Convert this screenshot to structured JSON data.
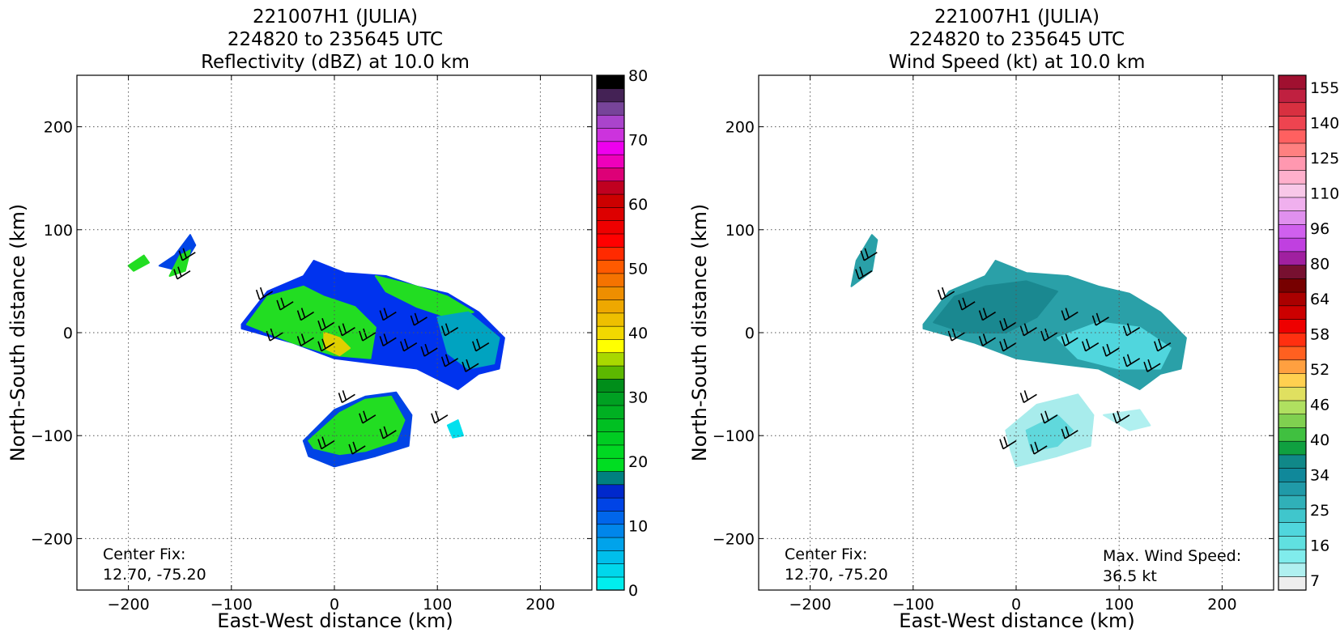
{
  "chart_data": [
    {
      "type": "heatmap",
      "title_lines": [
        "221007H1 (JULIA)",
        "224820 to 235645 UTC",
        "Reflectivity (dBZ) at 10.0 km"
      ],
      "xlabel": "East-West distance (km)",
      "ylabel": "North-South distance (km)",
      "xlim": [
        -250,
        250
      ],
      "ylim": [
        -250,
        250
      ],
      "xticks": [
        -200,
        -100,
        0,
        100,
        200
      ],
      "yticks": [
        -200,
        -100,
        0,
        100,
        200
      ],
      "grid": true,
      "annotations": [
        "Center Fix:",
        "12.70, -75.20"
      ],
      "colorbar": {
        "range": [
          0,
          80
        ],
        "tick_labels": [
          "0",
          "10",
          "20",
          "30",
          "40",
          "50",
          "60",
          "70",
          "80"
        ],
        "colors": [
          "#00eeee",
          "#00d7ec",
          "#00bfeb",
          "#00a3eb",
          "#0086eb",
          "#0066eb",
          "#0044e6",
          "#0028cc",
          "#008080",
          "#00dd22",
          "#00d822",
          "#00cc22",
          "#00c022",
          "#00b022",
          "#00a022",
          "#008e1a",
          "#5cb800",
          "#a8d800",
          "#ffff00",
          "#f2d800",
          "#eebf00",
          "#eea800",
          "#ee8e00",
          "#f57300",
          "#ff5a00",
          "#ff2a00",
          "#ff0000",
          "#ee0000",
          "#dd0000",
          "#cc0000",
          "#c00020",
          "#dd0077",
          "#ee00bb",
          "#ee00ee",
          "#cc33dd",
          "#aa44cc",
          "#774499",
          "#442255",
          "#000000"
        ]
      },
      "regions": [
        {
          "name": "reflectivity-main",
          "color": "#0033ee",
          "points": [
            [
              -90,
              8
            ],
            [
              -65,
              40
            ],
            [
              -30,
              55
            ],
            [
              -20,
              70
            ],
            [
              10,
              58
            ],
            [
              50,
              55
            ],
            [
              80,
              45
            ],
            [
              110,
              38
            ],
            [
              140,
              20
            ],
            [
              165,
              -5
            ],
            [
              160,
              -35
            ],
            [
              140,
              -40
            ],
            [
              120,
              -55
            ],
            [
              100,
              -45
            ],
            [
              80,
              -35
            ],
            [
              40,
              -30
            ],
            [
              0,
              -25
            ],
            [
              -40,
              -10
            ],
            [
              -90,
              4
            ]
          ]
        },
        {
          "name": "reflectivity-west-green",
          "color": "#22dd22",
          "points": [
            [
              -85,
              8
            ],
            [
              -65,
              35
            ],
            [
              -30,
              45
            ],
            [
              -10,
              35
            ],
            [
              20,
              25
            ],
            [
              40,
              5
            ],
            [
              35,
              -25
            ],
            [
              0,
              -22
            ],
            [
              -40,
              -10
            ]
          ]
        },
        {
          "name": "reflectivity-north-green",
          "color": "#22dd22",
          "points": [
            [
              40,
              55
            ],
            [
              80,
              45
            ],
            [
              110,
              35
            ],
            [
              135,
              20
            ],
            [
              110,
              15
            ],
            [
              80,
              25
            ],
            [
              50,
              40
            ]
          ]
        },
        {
          "name": "reflectivity-east-teal",
          "color": "#00a3c0",
          "points": [
            [
              100,
              15
            ],
            [
              130,
              20
            ],
            [
              160,
              -5
            ],
            [
              155,
              -30
            ],
            [
              130,
              -35
            ],
            [
              110,
              -20
            ]
          ]
        },
        {
          "name": "reflectivity-core",
          "color": "#e0d000",
          "points": [
            [
              -10,
              0
            ],
            [
              5,
              -5
            ],
            [
              15,
              -15
            ],
            [
              5,
              -22
            ],
            [
              -10,
              -15
            ]
          ]
        },
        {
          "name": "reflectivity-south-blue",
          "color": "#0044e6",
          "points": [
            [
              -30,
              -105
            ],
            [
              0,
              -75
            ],
            [
              30,
              -62
            ],
            [
              60,
              -58
            ],
            [
              75,
              -80
            ],
            [
              72,
              -110
            ],
            [
              40,
              -120
            ],
            [
              0,
              -130
            ],
            [
              -25,
              -120
            ]
          ]
        },
        {
          "name": "reflectivity-south-green",
          "color": "#22dd22",
          "points": [
            [
              -25,
              -105
            ],
            [
              5,
              -78
            ],
            [
              30,
              -65
            ],
            [
              55,
              -62
            ],
            [
              68,
              -85
            ],
            [
              60,
              -105
            ],
            [
              30,
              -115
            ],
            [
              5,
              -118
            ],
            [
              -20,
              -112
            ]
          ]
        },
        {
          "name": "reflectivity-northwest-band",
          "color": "#0044e6",
          "points": [
            [
              -170,
              65
            ],
            [
              -150,
              60
            ],
            [
              -135,
              85
            ],
            [
              -140,
              95
            ],
            [
              -155,
              75
            ]
          ]
        },
        {
          "name": "reflectivity-northwest-band-green",
          "color": "#22dd22",
          "points": [
            [
              -160,
              55
            ],
            [
              -145,
              60
            ],
            [
              -140,
              80
            ],
            [
              -150,
              75
            ]
          ]
        },
        {
          "name": "reflectivity-northwest-blob",
          "color": "#22dd22",
          "points": [
            [
              -200,
              65
            ],
            [
              -185,
              75
            ],
            [
              -180,
              68
            ],
            [
              -195,
              60
            ]
          ]
        },
        {
          "name": "reflectivity-east-fragment",
          "color": "#00e0ee",
          "points": [
            [
              110,
              -90
            ],
            [
              120,
              -85
            ],
            [
              125,
              -100
            ],
            [
              115,
              -102
            ]
          ]
        }
      ],
      "barbs": [
        [
          -135,
          78
        ],
        [
          -140,
          60
        ],
        [
          -60,
          40
        ],
        [
          -40,
          30
        ],
        [
          -20,
          20
        ],
        [
          0,
          10
        ],
        [
          20,
          5
        ],
        [
          40,
          0
        ],
        [
          60,
          -5
        ],
        [
          80,
          -10
        ],
        [
          100,
          -15
        ],
        [
          120,
          -25
        ],
        [
          140,
          -30
        ],
        [
          -50,
          0
        ],
        [
          -20,
          -5
        ],
        [
          0,
          -10
        ],
        [
          60,
          20
        ],
        [
          90,
          15
        ],
        [
          120,
          5
        ],
        [
          150,
          -10
        ],
        [
          20,
          -60
        ],
        [
          40,
          -80
        ],
        [
          60,
          -95
        ],
        [
          0,
          -105
        ],
        [
          30,
          -110
        ],
        [
          110,
          -80
        ]
      ]
    },
    {
      "type": "heatmap",
      "title_lines": [
        "221007H1 (JULIA)",
        "224820 to 235645 UTC",
        "Wind Speed (kt) at 10.0 km"
      ],
      "xlabel": "East-West distance (km)",
      "ylabel": "North-South distance (km)",
      "xlim": [
        -250,
        250
      ],
      "ylim": [
        -250,
        250
      ],
      "xticks": [
        -200,
        -100,
        0,
        100,
        200
      ],
      "yticks": [
        -200,
        -100,
        0,
        100,
        200
      ],
      "grid": true,
      "annotations": [
        "Center Fix:",
        "12.70, -75.20"
      ],
      "max_wind_label": [
        "Max. Wind Speed:",
        "36.5 kt"
      ],
      "colorbar": {
        "tick_labels": [
          "7",
          "16",
          "25",
          "34",
          "40",
          "46",
          "52",
          "58",
          "64",
          "80",
          "96",
          "110",
          "125",
          "140",
          "155"
        ],
        "colors": [
          "#eeeeee",
          "#b0f0f0",
          "#80ecec",
          "#60e0e0",
          "#50d6dd",
          "#40c6cc",
          "#30b0b8",
          "#209aa8",
          "#10889a",
          "#108888",
          "#10a040",
          "#40c040",
          "#80d050",
          "#b0e060",
          "#e0e060",
          "#ffd050",
          "#ffa040",
          "#ff6020",
          "#ff3010",
          "#ee0000",
          "#cc0000",
          "#aa0000",
          "#770000",
          "#771030",
          "#a020a0",
          "#c040e0",
          "#d060ee",
          "#e090ee",
          "#f0b0ee",
          "#f8c8e8",
          "#ffb0cc",
          "#ff98b0",
          "#ff8080",
          "#ff6060",
          "#ee4450",
          "#d83040",
          "#c02040",
          "#a01030"
        ]
      },
      "regions": [
        {
          "name": "wind-main",
          "color": "#2aa0a8",
          "points": [
            [
              -90,
              8
            ],
            [
              -65,
              40
            ],
            [
              -30,
              55
            ],
            [
              -20,
              70
            ],
            [
              10,
              58
            ],
            [
              50,
              55
            ],
            [
              80,
              45
            ],
            [
              110,
              38
            ],
            [
              140,
              20
            ],
            [
              165,
              -5
            ],
            [
              160,
              -35
            ],
            [
              140,
              -40
            ],
            [
              120,
              -55
            ],
            [
              100,
              -45
            ],
            [
              80,
              -35
            ],
            [
              40,
              -30
            ],
            [
              0,
              -25
            ],
            [
              -40,
              -10
            ],
            [
              -90,
              4
            ]
          ]
        },
        {
          "name": "wind-dark",
          "color": "#1a8890",
          "points": [
            [
              -80,
              10
            ],
            [
              -60,
              35
            ],
            [
              -30,
              45
            ],
            [
              10,
              50
            ],
            [
              40,
              40
            ],
            [
              20,
              15
            ],
            [
              -10,
              0
            ],
            [
              -50,
              0
            ]
          ]
        },
        {
          "name": "wind-light-east",
          "color": "#50d6dd",
          "points": [
            [
              40,
              -5
            ],
            [
              80,
              10
            ],
            [
              120,
              5
            ],
            [
              150,
              -15
            ],
            [
              140,
              -35
            ],
            [
              100,
              -35
            ],
            [
              60,
              -25
            ]
          ]
        },
        {
          "name": "wind-south",
          "color": "#a8ecec",
          "points": [
            [
              -10,
              -95
            ],
            [
              20,
              -70
            ],
            [
              60,
              -60
            ],
            [
              75,
              -80
            ],
            [
              72,
              -110
            ],
            [
              40,
              -120
            ],
            [
              0,
              -130
            ],
            [
              -5,
              -115
            ]
          ]
        },
        {
          "name": "wind-south-mid",
          "color": "#60d8dc",
          "points": [
            [
              10,
              -95
            ],
            [
              40,
              -80
            ],
            [
              55,
              -95
            ],
            [
              40,
              -110
            ],
            [
              15,
              -115
            ]
          ]
        },
        {
          "name": "wind-northwest-band",
          "color": "#2aa0a8",
          "points": [
            [
              -160,
              45
            ],
            [
              -140,
              60
            ],
            [
              -135,
              90
            ],
            [
              -140,
              95
            ],
            [
              -155,
              70
            ]
          ]
        },
        {
          "name": "wind-east-fragment",
          "color": "#b0f0f0",
          "points": [
            [
              85,
              -80
            ],
            [
              120,
              -75
            ],
            [
              130,
              -90
            ],
            [
              110,
              -95
            ]
          ]
        }
      ],
      "barbs": [
        [
          -135,
          78
        ],
        [
          -140,
          60
        ],
        [
          -60,
          40
        ],
        [
          -40,
          30
        ],
        [
          -20,
          20
        ],
        [
          0,
          10
        ],
        [
          20,
          5
        ],
        [
          40,
          0
        ],
        [
          60,
          -5
        ],
        [
          80,
          -10
        ],
        [
          100,
          -15
        ],
        [
          120,
          -25
        ],
        [
          140,
          -30
        ],
        [
          -50,
          0
        ],
        [
          -20,
          -5
        ],
        [
          0,
          -10
        ],
        [
          60,
          20
        ],
        [
          90,
          15
        ],
        [
          120,
          5
        ],
        [
          150,
          -10
        ],
        [
          20,
          -60
        ],
        [
          40,
          -80
        ],
        [
          60,
          -95
        ],
        [
          0,
          -105
        ],
        [
          30,
          -110
        ],
        [
          110,
          -80
        ]
      ]
    }
  ]
}
